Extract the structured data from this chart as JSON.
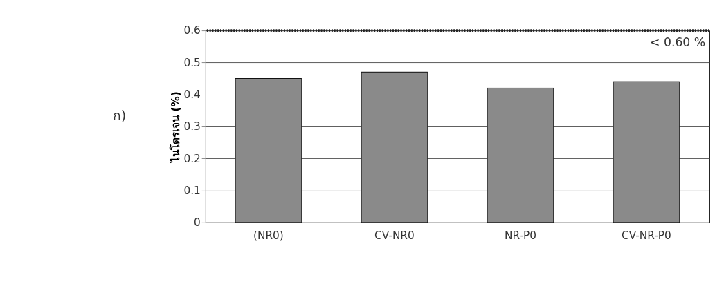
{
  "chart_data": {
    "type": "bar",
    "ylabel": "ไนโตรเจน (%)",
    "categories": [
      "(NR0)",
      "CV-NR0",
      "NR-P0",
      "CV-NR-P0"
    ],
    "values": [
      0.45,
      0.47,
      0.42,
      0.44
    ],
    "color": "#8a8a8a",
    "ylim": [
      0,
      0.6
    ],
    "yticks": [
      0,
      0.1,
      0.2,
      0.3,
      0.4,
      0.5,
      0.6
    ],
    "grid": "y",
    "ref_lines": [
      {
        "axis": "y",
        "value": 0.6,
        "label": "< 0.60 %",
        "line_style": "dotted",
        "color": "#222222"
      }
    ],
    "annotations": [
      "ก)"
    ]
  }
}
